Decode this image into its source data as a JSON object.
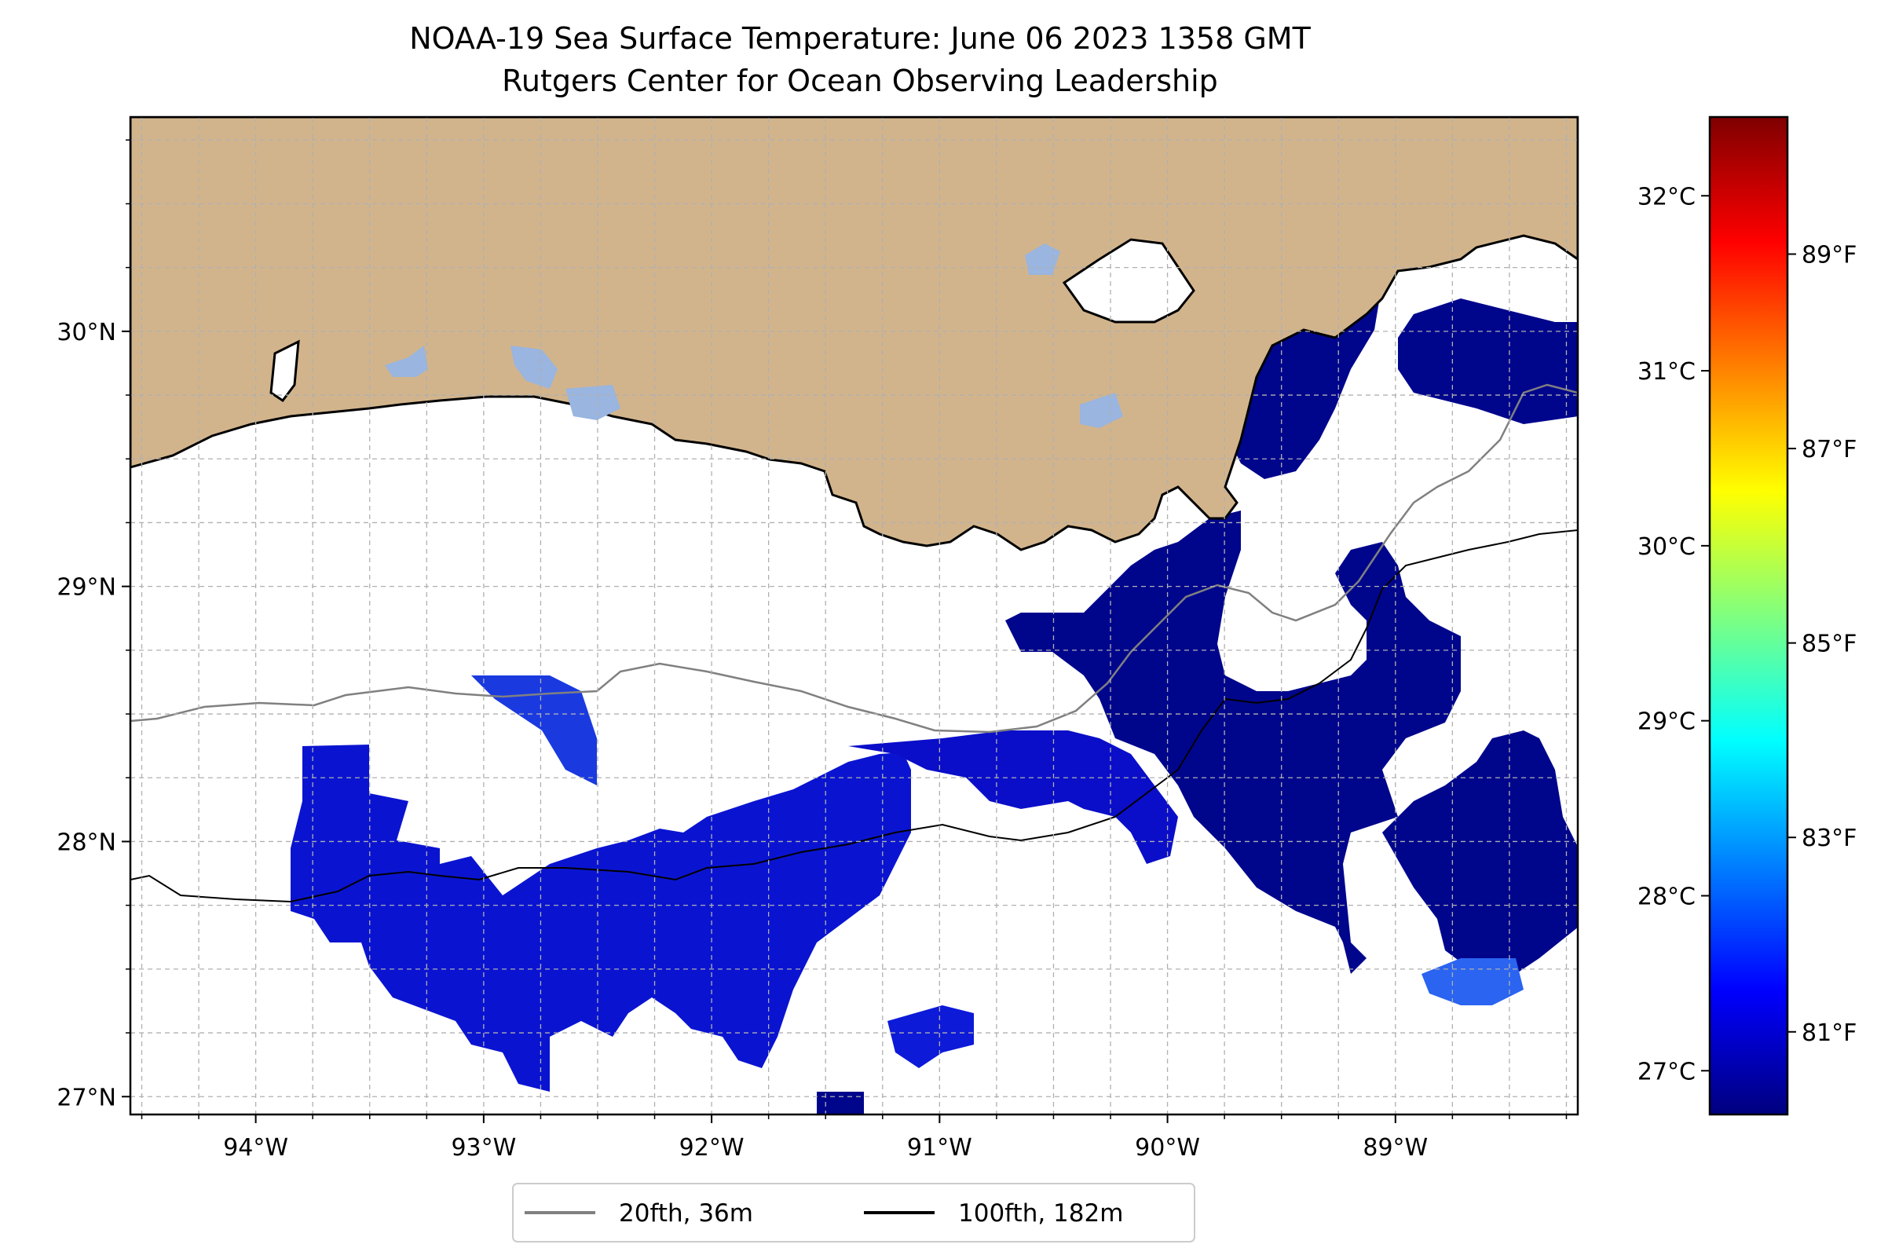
{
  "title": "NOAA-19 Sea Surface Temperature: June 06 2023 1358 GMT",
  "subtitle": "Rutgers Center for Ocean Observing Leadership",
  "map": {
    "lon_ticks": [
      {
        "value": -94,
        "label": "94°W"
      },
      {
        "value": -93,
        "label": "93°W"
      },
      {
        "value": -92,
        "label": "92°W"
      },
      {
        "value": -91,
        "label": "91°W"
      },
      {
        "value": -90,
        "label": "90°W"
      },
      {
        "value": -89,
        "label": "89°W"
      }
    ],
    "lat_ticks": [
      {
        "value": 27,
        "label": "27°N"
      },
      {
        "value": 28,
        "label": "28°N"
      },
      {
        "value": 29,
        "label": "29°N"
      },
      {
        "value": 30,
        "label": "30°N"
      }
    ],
    "extent": {
      "lon_min": -94.55,
      "lon_max": -88.2,
      "lat_min": 26.93,
      "lat_max": 30.84
    },
    "grid": "dashed",
    "land_color": "#d2b48c",
    "lake_color": "#99b5e0",
    "water_color": "#ffffff"
  },
  "colorbar": {
    "colormap": "jet",
    "celsius_ticks": [
      {
        "value": 27,
        "label": "27°C"
      },
      {
        "value": 28,
        "label": "28°C"
      },
      {
        "value": 29,
        "label": "29°C"
      },
      {
        "value": 30,
        "label": "30°C"
      },
      {
        "value": 31,
        "label": "31°C"
      },
      {
        "value": 32,
        "label": "32°C"
      }
    ],
    "fahrenheit_ticks": [
      {
        "value": 81,
        "label": "81°F"
      },
      {
        "value": 83,
        "label": "83°F"
      },
      {
        "value": 85,
        "label": "85°F"
      },
      {
        "value": 87,
        "label": "87°F"
      },
      {
        "value": 89,
        "label": "89°F"
      }
    ],
    "range_celsius": [
      26.75,
      32.45
    ]
  },
  "legend": {
    "placement": "bottom-center",
    "items": [
      {
        "label": "20fth, 36m",
        "color": "#808080"
      },
      {
        "label": "100fth, 182m",
        "color": "#000000"
      }
    ]
  }
}
